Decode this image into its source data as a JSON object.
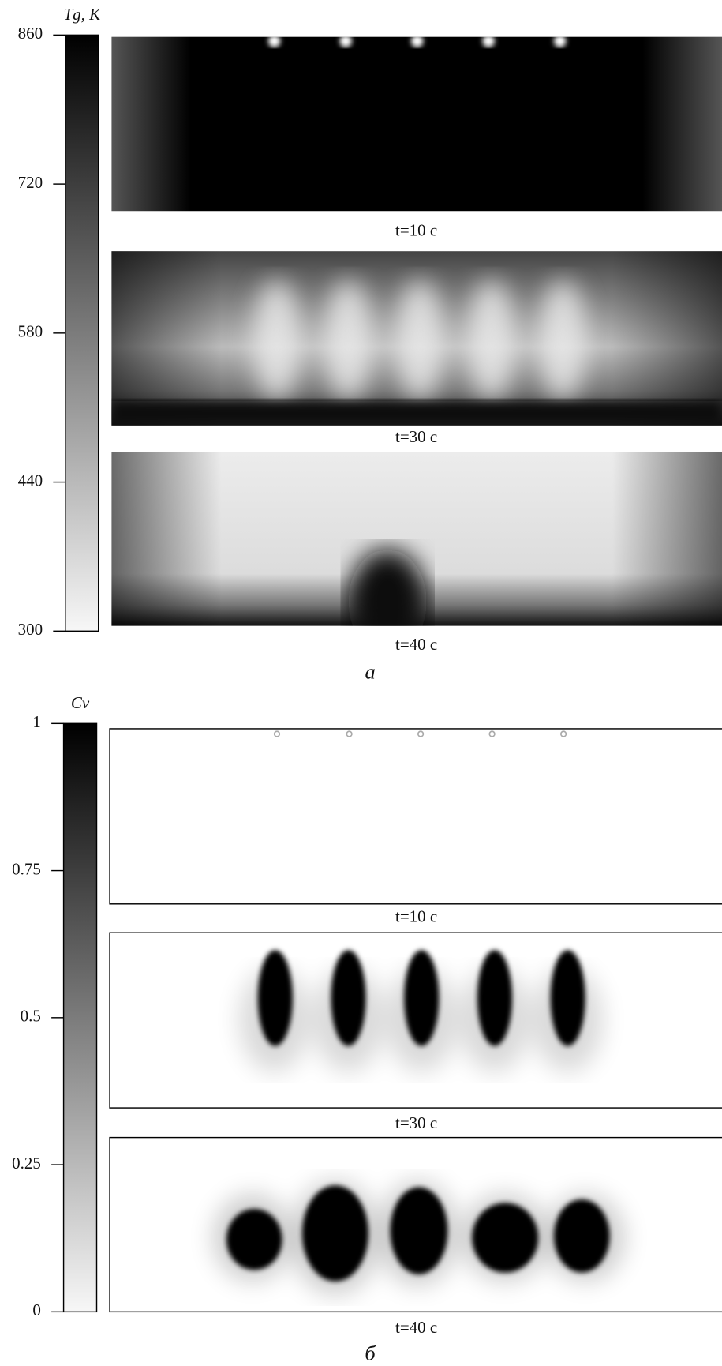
{
  "figures": [
    {
      "label": "а",
      "colorbar": {
        "title": "Tg, К",
        "lim": [
          300,
          860
        ],
        "ticks": [
          860,
          720,
          580,
          440,
          300
        ]
      },
      "panels": [
        {
          "caption": "t=10 с"
        },
        {
          "caption": "t=30 с"
        },
        {
          "caption": "t=40 с"
        }
      ]
    },
    {
      "label": "б",
      "colorbar": {
        "title": "Cv",
        "lim": [
          0,
          1
        ],
        "ticks": [
          1,
          0.75,
          0.5,
          0.25,
          0
        ]
      },
      "panels": [
        {
          "caption": "t=10 с"
        },
        {
          "caption": "t=30 с"
        },
        {
          "caption": "t=40 с"
        }
      ]
    }
  ]
}
